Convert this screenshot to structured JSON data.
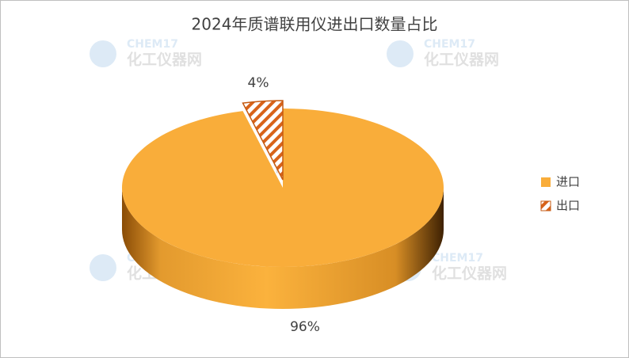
{
  "chart_data": {
    "type": "pie3d",
    "title": "2024年质谱联用仪进出口数量占比",
    "categories": [
      "进口",
      "出口"
    ],
    "values": [
      96,
      4
    ],
    "value_labels": [
      "96%",
      "4%"
    ],
    "colors": [
      "#f9ad3a",
      "#c55a11"
    ],
    "exploded": [
      false,
      true
    ],
    "legend": "right",
    "watermark": {
      "brand": "CHEM17",
      "name": "化工仪器网"
    }
  }
}
